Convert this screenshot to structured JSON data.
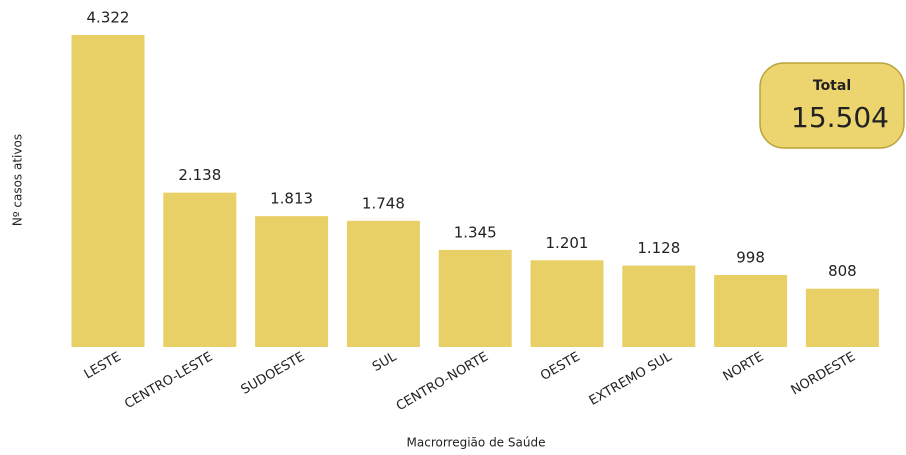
{
  "chart_data": {
    "type": "bar",
    "x_label": "Macrorregião de Saúde",
    "y_label": "Nº casos ativos",
    "categories": [
      "LESTE",
      "CENTRO-LESTE",
      "SUDOESTE",
      "SUL",
      "CENTRO-NORTE",
      "OESTE",
      "EXTREMO SUL",
      "NORTE",
      "NORDESTE"
    ],
    "values": [
      4322,
      2138,
      1813,
      1748,
      1345,
      1201,
      1128,
      998,
      808
    ],
    "value_labels": [
      "4.322",
      "2.138",
      "1.813",
      "1.748",
      "1.345",
      "1.201",
      "1.128",
      "998",
      "808"
    ],
    "color": "#e8d066",
    "total": {
      "title": "Total",
      "value": 15504,
      "value_label": "15.504"
    }
  }
}
